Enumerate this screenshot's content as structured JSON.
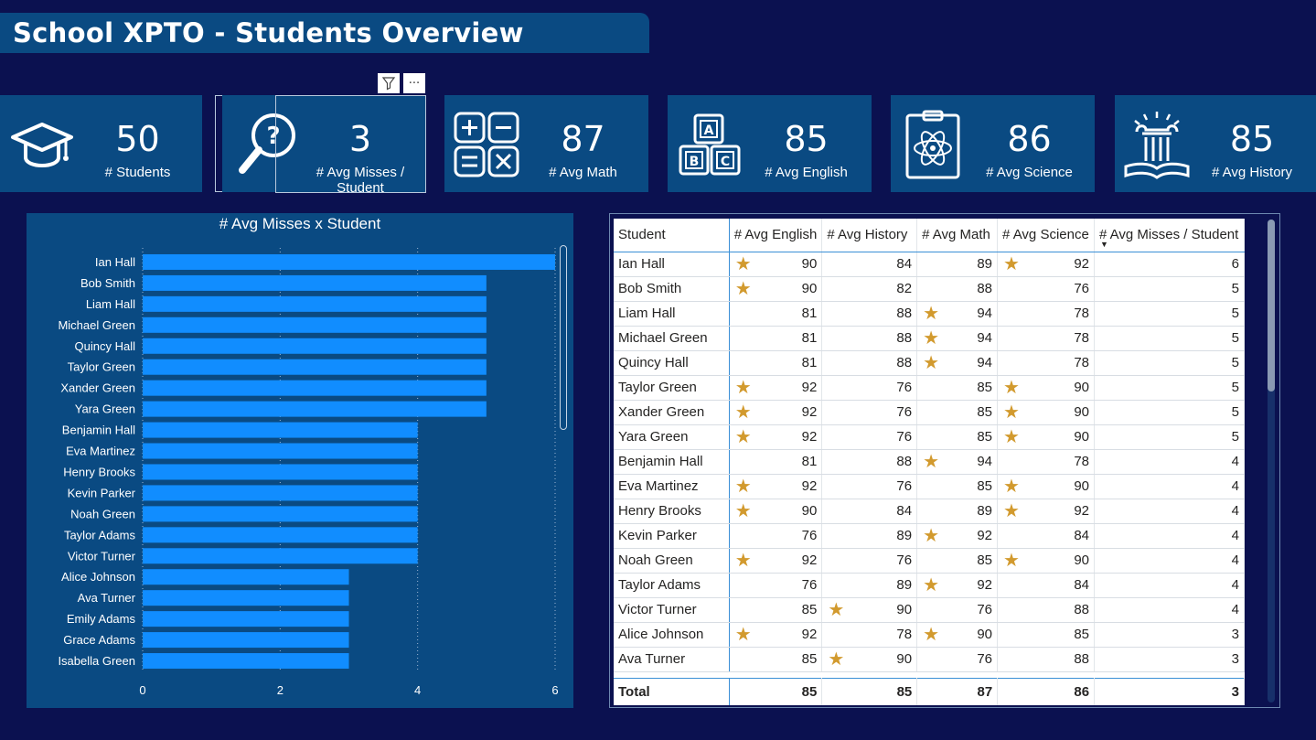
{
  "title": "School XPTO - Students Overview",
  "header_icons": {
    "filter": "filter-icon",
    "more": "···"
  },
  "kpis": [
    {
      "value": "50",
      "label": "# Students",
      "icon": "graduation-cap-icon"
    },
    {
      "value": "3",
      "label": "# Avg Misses / Student",
      "icon": "magnifier-question-icon"
    },
    {
      "value": "87",
      "label": "# Avg Math",
      "icon": "math-operators-icon"
    },
    {
      "value": "85",
      "label": "# Avg English",
      "icon": "abc-blocks-icon"
    },
    {
      "value": "86",
      "label": "# Avg Science",
      "icon": "atom-clipboard-icon"
    },
    {
      "value": "85",
      "label": "# Avg History",
      "icon": "column-book-icon"
    }
  ],
  "chart_data": {
    "type": "bar",
    "orientation": "horizontal",
    "title": "# Avg Misses x Student",
    "categories": [
      "Ian Hall",
      "Bob Smith",
      "Liam Hall",
      "Michael Green",
      "Quincy Hall",
      "Taylor Green",
      "Xander Green",
      "Yara Green",
      "Benjamin Hall",
      "Eva Martinez",
      "Henry Brooks",
      "Kevin Parker",
      "Noah Green",
      "Taylor Adams",
      "Victor Turner",
      "Alice Johnson",
      "Ava Turner",
      "Emily Adams",
      "Grace Adams",
      "Isabella Green"
    ],
    "values": [
      6,
      5,
      5,
      5,
      5,
      5,
      5,
      5,
      4,
      4,
      4,
      4,
      4,
      4,
      4,
      3,
      3,
      3,
      3,
      3
    ],
    "xlim": [
      0,
      6
    ],
    "xticks": [
      "0",
      "2",
      "4",
      "6"
    ],
    "grid": true,
    "bar_color": "#118dff"
  },
  "table": {
    "columns": [
      "Student",
      "# Avg English",
      "# Avg History",
      "# Avg Math",
      "# Avg Science",
      "# Avg Misses / Student"
    ],
    "sort_indicator": "▼",
    "rows": [
      {
        "name": "Ian Hall",
        "english": "90",
        "history": "84",
        "math": "89",
        "science": "92",
        "misses": "6",
        "stars": [
          1,
          0,
          0,
          1
        ]
      },
      {
        "name": "Bob Smith",
        "english": "90",
        "history": "82",
        "math": "88",
        "science": "76",
        "misses": "5",
        "stars": [
          1,
          0,
          0,
          0
        ]
      },
      {
        "name": "Liam Hall",
        "english": "81",
        "history": "88",
        "math": "94",
        "science": "78",
        "misses": "5",
        "stars": [
          0,
          0,
          1,
          0
        ]
      },
      {
        "name": "Michael Green",
        "english": "81",
        "history": "88",
        "math": "94",
        "science": "78",
        "misses": "5",
        "stars": [
          0,
          0,
          1,
          0
        ]
      },
      {
        "name": "Quincy Hall",
        "english": "81",
        "history": "88",
        "math": "94",
        "science": "78",
        "misses": "5",
        "stars": [
          0,
          0,
          1,
          0
        ]
      },
      {
        "name": "Taylor Green",
        "english": "92",
        "history": "76",
        "math": "85",
        "science": "90",
        "misses": "5",
        "stars": [
          1,
          0,
          0,
          1
        ]
      },
      {
        "name": "Xander Green",
        "english": "92",
        "history": "76",
        "math": "85",
        "science": "90",
        "misses": "5",
        "stars": [
          1,
          0,
          0,
          1
        ]
      },
      {
        "name": "Yara Green",
        "english": "92",
        "history": "76",
        "math": "85",
        "science": "90",
        "misses": "5",
        "stars": [
          1,
          0,
          0,
          1
        ]
      },
      {
        "name": "Benjamin Hall",
        "english": "81",
        "history": "88",
        "math": "94",
        "science": "78",
        "misses": "4",
        "stars": [
          0,
          0,
          1,
          0
        ]
      },
      {
        "name": "Eva Martinez",
        "english": "92",
        "history": "76",
        "math": "85",
        "science": "90",
        "misses": "4",
        "stars": [
          1,
          0,
          0,
          1
        ]
      },
      {
        "name": "Henry Brooks",
        "english": "90",
        "history": "84",
        "math": "89",
        "science": "92",
        "misses": "4",
        "stars": [
          1,
          0,
          0,
          1
        ]
      },
      {
        "name": "Kevin Parker",
        "english": "76",
        "history": "89",
        "math": "92",
        "science": "84",
        "misses": "4",
        "stars": [
          0,
          0,
          1,
          0
        ]
      },
      {
        "name": "Noah Green",
        "english": "92",
        "history": "76",
        "math": "85",
        "science": "90",
        "misses": "4",
        "stars": [
          1,
          0,
          0,
          1
        ]
      },
      {
        "name": "Taylor Adams",
        "english": "76",
        "history": "89",
        "math": "92",
        "science": "84",
        "misses": "4",
        "stars": [
          0,
          0,
          1,
          0
        ]
      },
      {
        "name": "Victor Turner",
        "english": "85",
        "history": "90",
        "math": "76",
        "science": "88",
        "misses": "4",
        "stars": [
          0,
          1,
          0,
          0
        ]
      },
      {
        "name": "Alice Johnson",
        "english": "92",
        "history": "78",
        "math": "90",
        "science": "85",
        "misses": "3",
        "stars": [
          1,
          0,
          1,
          0
        ]
      },
      {
        "name": "Ava Turner",
        "english": "85",
        "history": "90",
        "math": "76",
        "science": "88",
        "misses": "3",
        "stars": [
          0,
          1,
          0,
          0
        ]
      }
    ],
    "total": {
      "label": "Total",
      "english": "85",
      "history": "85",
      "math": "87",
      "science": "86",
      "misses": "3"
    },
    "star_color": "#d29a2e"
  }
}
